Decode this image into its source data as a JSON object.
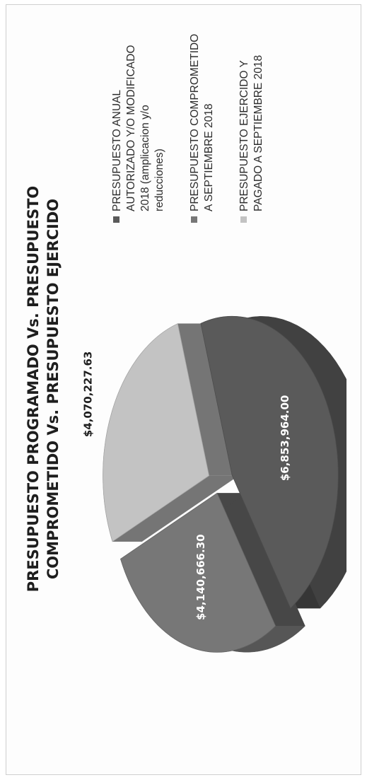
{
  "chart_data": {
    "type": "pie",
    "title_lines": [
      "PRESUPUESTO PROGRAMADO Vs. PRESUPUESTO",
      "COMPROMETIDO Vs. PRESUPUESTO EJERCIDO"
    ],
    "series": [
      {
        "name_lines": [
          "PRESUPUESTO ANUAL",
          "AUTORIZADO Y/O MODIFICADO",
          "2018 (amplicacion y/o",
          "reducciones)"
        ],
        "value": 6853964.0,
        "label": "$6,853,964.00",
        "color": "#5a5a5a"
      },
      {
        "name_lines": [
          "PRESUPUESTO COMPROMETIDO",
          "A SEPTIEMBRE 2018"
        ],
        "value": 4140666.3,
        "label": "$4,140,666.30",
        "color": "#777777"
      },
      {
        "name_lines": [
          "PRESUPUESTO EJERCIDO Y",
          "PAGADO A SEPTIEMBRE 2018"
        ],
        "value": 4070227.63,
        "label": "$4,070,227.63",
        "color": "#c3c3c3"
      }
    ],
    "legend_position": "right",
    "style": "3d-exploded-pie"
  }
}
